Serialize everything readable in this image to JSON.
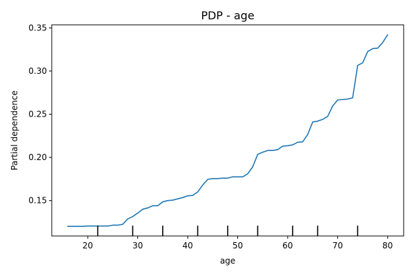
{
  "chart_data": {
    "type": "line",
    "title": "PDP - age",
    "xlabel": "age",
    "ylabel": "Partial dependence",
    "xlim": [
      12.8,
      83.2
    ],
    "ylim": [
      0.109,
      0.3535
    ],
    "xticks": [
      20,
      30,
      40,
      50,
      60,
      70,
      80
    ],
    "xtick_labels": [
      "20",
      "30",
      "40",
      "50",
      "60",
      "70",
      "80"
    ],
    "yticks": [
      0.15,
      0.2,
      0.25,
      0.3,
      0.35
    ],
    "ytick_labels": [
      "0.15",
      "0.20",
      "0.25",
      "0.30",
      "0.35"
    ],
    "grid": false,
    "legend": "none",
    "series": [
      {
        "color": "#1f77b4",
        "x": [
          16,
          17,
          18,
          19,
          20,
          21,
          22,
          23,
          24,
          25,
          26,
          27,
          28,
          29,
          30,
          31,
          32,
          33,
          34,
          35,
          36,
          37,
          38,
          39,
          40,
          41,
          42,
          43,
          44,
          45,
          46,
          47,
          48,
          49,
          50,
          51,
          52,
          53,
          54,
          55,
          56,
          57,
          58,
          59,
          60,
          61,
          62,
          63,
          64,
          65,
          66,
          67,
          68,
          69,
          70,
          71,
          72,
          73,
          74,
          75,
          76,
          77,
          78,
          79,
          80
        ],
        "y": [
          0.1201,
          0.1201,
          0.1201,
          0.1201,
          0.1205,
          0.1205,
          0.1205,
          0.1205,
          0.1205,
          0.1215,
          0.1215,
          0.1225,
          0.1287,
          0.1315,
          0.1355,
          0.14,
          0.1415,
          0.144,
          0.144,
          0.1485,
          0.15,
          0.1505,
          0.152,
          0.1535,
          0.1555,
          0.156,
          0.16,
          0.168,
          0.1745,
          0.1755,
          0.1755,
          0.176,
          0.176,
          0.1775,
          0.1775,
          0.1775,
          0.181,
          0.189,
          0.2035,
          0.206,
          0.208,
          0.208,
          0.209,
          0.213,
          0.2135,
          0.2145,
          0.2175,
          0.218,
          0.2265,
          0.241,
          0.242,
          0.244,
          0.2475,
          0.2595,
          0.2665,
          0.267,
          0.2675,
          0.269,
          0.3065,
          0.3095,
          0.3225,
          0.326,
          0.3265,
          0.333,
          0.342
        ]
      }
    ],
    "rug": {
      "color": "#000000",
      "x": [
        22,
        29,
        35,
        42,
        48,
        54,
        61,
        66,
        74
      ]
    }
  }
}
